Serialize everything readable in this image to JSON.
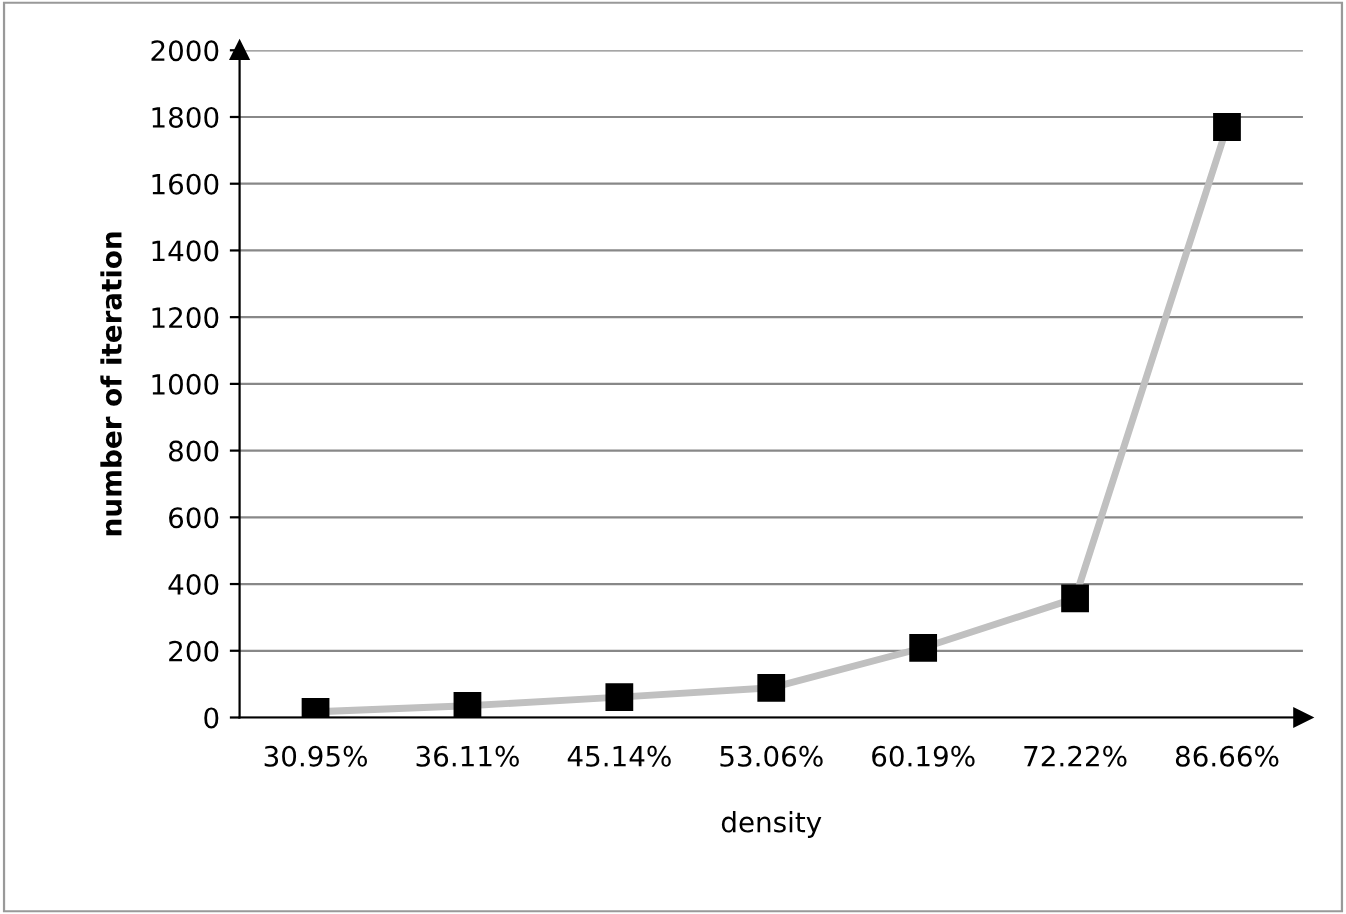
{
  "chart_data": {
    "type": "line",
    "xlabel": "density",
    "ylabel": "number of iteration",
    "categories": [
      "30.95%",
      "36.11%",
      "45.14%",
      "53.06%",
      "60.19%",
      "72.22%",
      "86.66%"
    ],
    "series": [
      {
        "color": "#c0c0c0",
        "values": [
          17,
          35,
          61,
          89,
          209,
          357,
          1770
        ]
      }
    ],
    "marker": "square",
    "ylim": [
      0,
      2000
    ],
    "yticks": [
      0,
      200,
      400,
      600,
      800,
      1000,
      1200,
      1400,
      1600,
      1800,
      2000
    ],
    "grid": "y",
    "legend": false
  }
}
